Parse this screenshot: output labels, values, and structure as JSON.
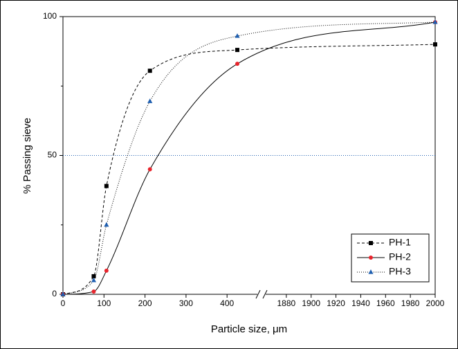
{
  "chart_data": {
    "type": "line",
    "x_label": "Particle size, μm",
    "y_label": "% Passing sieve",
    "x": [
      0,
      75,
      106,
      212,
      425,
      2000
    ],
    "series": [
      {
        "name": "PH-1",
        "color": "#000000",
        "marker": "square",
        "dash": "4,3",
        "values": [
          0,
          6.5,
          39,
          80.5,
          88,
          90
        ]
      },
      {
        "name": "PH-2",
        "color": "#e8242c",
        "line_color": "#000000",
        "marker": "circle",
        "dash": "none",
        "values": [
          0,
          1,
          8.5,
          45,
          83,
          98
        ]
      },
      {
        "name": "PH-3",
        "color": "#1f5fb0",
        "line_color": "#000000",
        "marker": "triangle",
        "dash": "1,2",
        "values": [
          0,
          5,
          25,
          69.5,
          93,
          98
        ]
      }
    ],
    "xlim": [
      0,
      2000
    ],
    "xbreak": [
      484,
      1860
    ],
    "xticks": [
      0,
      100,
      200,
      300,
      400,
      1880,
      1900,
      1920,
      1940,
      1960,
      1980,
      2000
    ],
    "ylim": [
      0,
      100
    ],
    "yticks": [
      0,
      50,
      100
    ],
    "yminor": [
      25,
      75
    ],
    "ref_line": {
      "value": 50,
      "color": "#1f5fb0"
    },
    "legend": "lower right"
  }
}
